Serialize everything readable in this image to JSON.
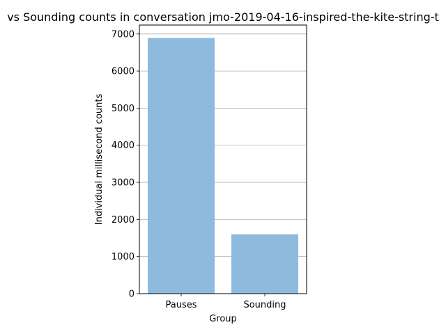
{
  "chart_data": {
    "type": "bar",
    "title": "vs Sounding counts in conversation jmo-2019-04-16-inspired-the-kite-string-t",
    "xlabel": "Group",
    "ylabel": "Individual millisecond counts",
    "categories": [
      "Pauses",
      "Sounding"
    ],
    "values": [
      6890,
      1600
    ],
    "ylim": [
      0,
      7240
    ],
    "yticks": [
      0,
      1000,
      2000,
      3000,
      4000,
      5000,
      6000,
      7000
    ],
    "grid": "horizontal",
    "bar_color": "#8ebadd"
  }
}
